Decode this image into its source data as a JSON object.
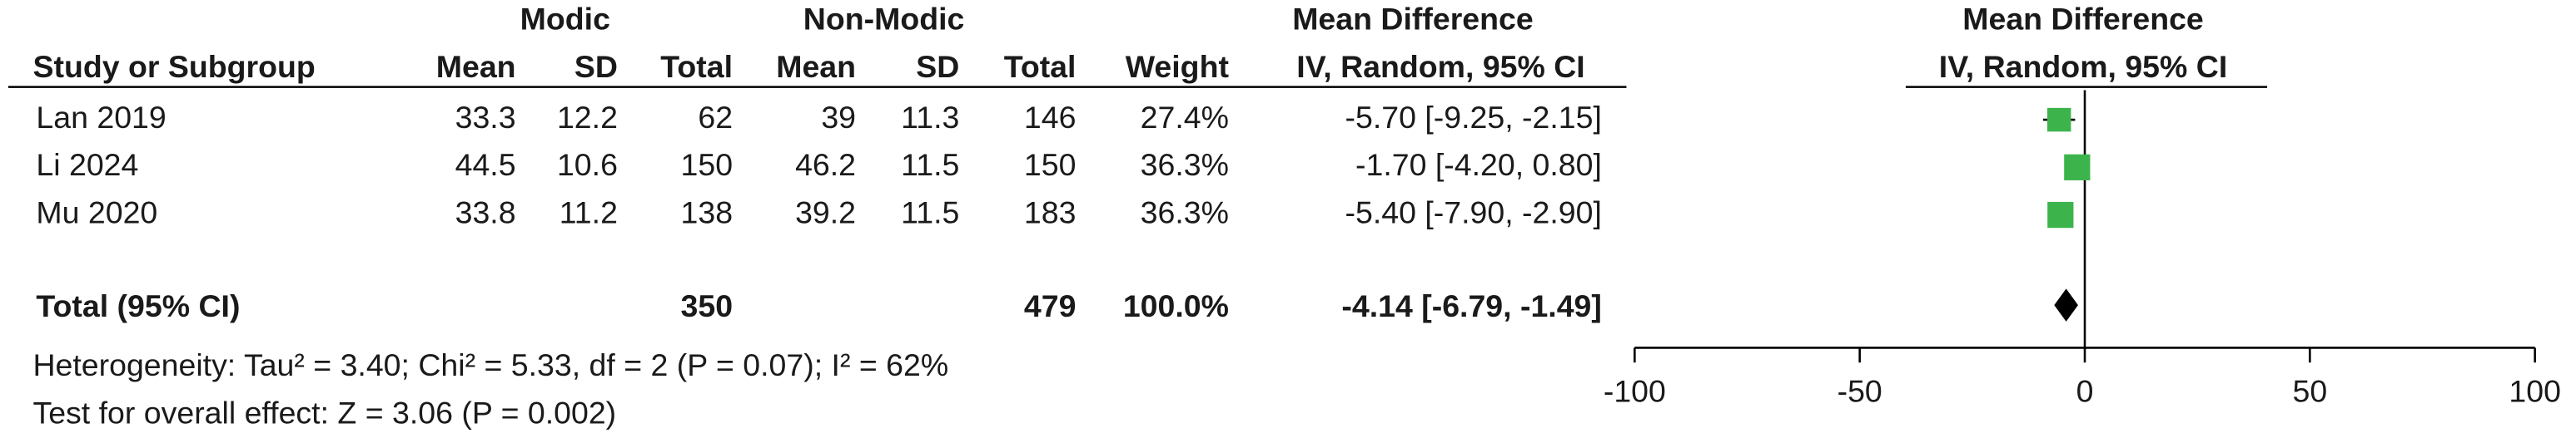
{
  "chart_data": {
    "type": "forest",
    "group_headers": [
      "Modic",
      "Non-Modic"
    ],
    "effect_header": "Mean Difference",
    "effect_subheader": "IV, Random, 95% CI",
    "plot_header": "Mean Difference",
    "plot_subheader": "IV, Random, 95% CI",
    "columns": [
      "Study or Subgroup",
      "Mean",
      "SD",
      "Total",
      "Mean",
      "SD",
      "Total",
      "Weight"
    ],
    "studies": [
      {
        "name": "Lan  2019",
        "mean1": 33.3,
        "sd1": 12.2,
        "n1": 62,
        "mean2": 39,
        "sd2": 11.3,
        "n2": 146,
        "weight": 27.4,
        "weight_label": "27.4%",
        "md": -5.7,
        "ci": [
          -9.25,
          -2.15
        ],
        "label": "-5.70 [-9.25, -2.15]"
      },
      {
        "name": "Li 2024",
        "mean1": 44.5,
        "sd1": 10.6,
        "n1": 150,
        "mean2": 46.2,
        "sd2": 11.5,
        "n2": 150,
        "weight": 36.3,
        "weight_label": "36.3%",
        "md": -1.7,
        "ci": [
          -4.2,
          0.8
        ],
        "label": "-1.70 [-4.20, 0.80]"
      },
      {
        "name": "Mu  2020",
        "mean1": 33.8,
        "sd1": 11.2,
        "n1": 138,
        "mean2": 39.2,
        "sd2": 11.5,
        "n2": 183,
        "weight": 36.3,
        "weight_label": "36.3%",
        "md": -5.4,
        "ci": [
          -7.9,
          -2.9
        ],
        "label": "-5.40 [-7.90, -2.90]"
      }
    ],
    "total": {
      "name": "Total (95% CI)",
      "n1": 350,
      "n2": 479,
      "weight": 100.0,
      "weight_label": "100.0%",
      "md": -4.14,
      "ci": [
        -6.79,
        -1.49
      ],
      "label": "-4.14 [-6.79, -1.49]"
    },
    "heterogeneity": "Heterogeneity: Tau² = 3.40; Chi² = 5.33, df = 2 (P = 0.07); I² = 62%",
    "overall_effect": "Test for overall effect: Z = 3.06 (P = 0.002)",
    "xlim": [
      -100,
      100
    ],
    "xticks": [
      -100,
      -50,
      0,
      50,
      100
    ],
    "marker_color": "#3cb44b",
    "diamond_color": "#000000"
  }
}
